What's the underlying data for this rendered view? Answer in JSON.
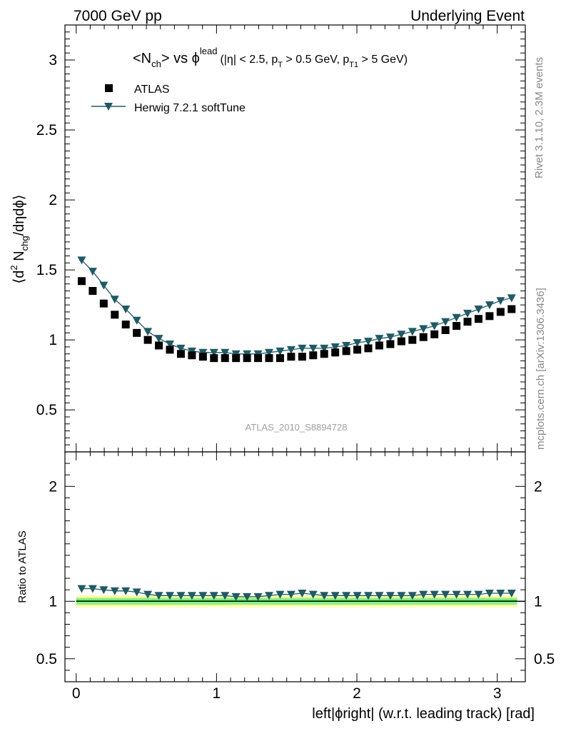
{
  "header": {
    "left": "7000 GeV pp",
    "right": "Underlying Event"
  },
  "side_labels": {
    "rivet": "Rivet 3.1.10,  2.3M events",
    "mcplots": "mcplots.cern.ch [arXiv:1306.3436]"
  },
  "watermark": "ATLAS_2010_S8894728",
  "colors": {
    "data": "#000000",
    "mc": "#1f5a66",
    "band_inner": "#90ee90",
    "band_outer": "#ffff99",
    "ratio_line": "#009e00"
  },
  "chart_data": {
    "type": "scatter",
    "title": {
      "main": "<N",
      "main_sub": "ch",
      "main_mid": "> vs ",
      "phi": "ϕ",
      "phi_sup": "lead",
      "detail_a": "(|η| < 2.5, p",
      "detail_sub1": "T",
      "detail_b": " > 0.5 GeV, p",
      "detail_sub2": "T1",
      "detail_c": " > 5 GeV)"
    },
    "ylabel": {
      "a": "⟨d",
      "sup": "2",
      "b": " N",
      "sub": "chg",
      "c": "/dηdϕ⟩"
    },
    "xlabel": "left|ϕright| (w.r.t. leading track) [rad]",
    "ratio_ylabel": "Ratio to ATLAS",
    "xlim": [
      -0.08,
      3.2
    ],
    "ylim": [
      0.2,
      3.25
    ],
    "ratio_ylim": [
      0.3,
      2.3
    ],
    "xticks": [
      0,
      1,
      2,
      3
    ],
    "yticks": [
      0.5,
      1,
      1.5,
      2,
      2.5,
      3
    ],
    "ratio_yticks": [
      0.5,
      1,
      2
    ],
    "ratio_yticks_right": [
      0.5,
      1,
      2
    ],
    "legend_position": "top-left",
    "series": [
      {
        "name": "ATLAS",
        "marker": "square",
        "x": [
          0.0393,
          0.1178,
          0.1963,
          0.2749,
          0.3534,
          0.432,
          0.5105,
          0.589,
          0.6676,
          0.7461,
          0.8247,
          0.9032,
          0.9817,
          1.0603,
          1.1388,
          1.2174,
          1.2959,
          1.3744,
          1.453,
          1.5315,
          1.6101,
          1.6886,
          1.7671,
          1.8457,
          1.9242,
          2.0028,
          2.0813,
          2.1598,
          2.2384,
          2.3169,
          2.3955,
          2.474,
          2.5525,
          2.6311,
          2.7096,
          2.7882,
          2.8667,
          2.9452,
          3.0238,
          3.1023
        ],
        "y": [
          1.42,
          1.35,
          1.26,
          1.18,
          1.11,
          1.05,
          1.0,
          0.96,
          0.93,
          0.9,
          0.89,
          0.88,
          0.87,
          0.87,
          0.87,
          0.87,
          0.87,
          0.87,
          0.87,
          0.88,
          0.88,
          0.89,
          0.9,
          0.91,
          0.92,
          0.93,
          0.94,
          0.96,
          0.97,
          0.99,
          1.0,
          1.02,
          1.04,
          1.07,
          1.1,
          1.13,
          1.15,
          1.17,
          1.2,
          1.22
        ]
      },
      {
        "name": "Herwig 7.2.1 softTune",
        "marker": "triangle-down",
        "x": [
          0.0393,
          0.1178,
          0.1963,
          0.2749,
          0.3534,
          0.432,
          0.5105,
          0.589,
          0.6676,
          0.7461,
          0.8247,
          0.9032,
          0.9817,
          1.0603,
          1.1388,
          1.2174,
          1.2959,
          1.3744,
          1.453,
          1.5315,
          1.6101,
          1.6886,
          1.7671,
          1.8457,
          1.9242,
          2.0028,
          2.0813,
          2.1598,
          2.2384,
          2.3169,
          2.3955,
          2.474,
          2.5525,
          2.6311,
          2.7096,
          2.7882,
          2.8667,
          2.9452,
          3.0238,
          3.1023
        ],
        "y": [
          1.57,
          1.49,
          1.39,
          1.29,
          1.22,
          1.14,
          1.06,
          1.01,
          0.97,
          0.94,
          0.92,
          0.91,
          0.91,
          0.91,
          0.9,
          0.9,
          0.9,
          0.91,
          0.92,
          0.93,
          0.94,
          0.94,
          0.94,
          0.95,
          0.96,
          0.98,
          0.99,
          1.01,
          1.02,
          1.04,
          1.06,
          1.08,
          1.1,
          1.13,
          1.16,
          1.19,
          1.22,
          1.25,
          1.28,
          1.3
        ]
      }
    ],
    "ratio": {
      "x": [
        0.0393,
        0.1178,
        0.1963,
        0.2749,
        0.3534,
        0.432,
        0.5105,
        0.589,
        0.6676,
        0.7461,
        0.8247,
        0.9032,
        0.9817,
        1.0603,
        1.1388,
        1.2174,
        1.2959,
        1.3744,
        1.453,
        1.5315,
        1.6101,
        1.6886,
        1.7671,
        1.8457,
        1.9242,
        2.0028,
        2.0813,
        2.1598,
        2.2384,
        2.3169,
        2.3955,
        2.474,
        2.5525,
        2.6311,
        2.7096,
        2.7882,
        2.8667,
        2.9452,
        3.0238,
        3.1023
      ],
      "y": [
        1.11,
        1.11,
        1.1,
        1.09,
        1.09,
        1.08,
        1.06,
        1.05,
        1.05,
        1.05,
        1.05,
        1.05,
        1.05,
        1.05,
        1.04,
        1.04,
        1.04,
        1.05,
        1.06,
        1.06,
        1.07,
        1.06,
        1.05,
        1.05,
        1.05,
        1.05,
        1.05,
        1.05,
        1.05,
        1.05,
        1.05,
        1.06,
        1.06,
        1.06,
        1.06,
        1.06,
        1.06,
        1.07,
        1.07,
        1.07
      ],
      "band_inner": [
        0.97,
        1.03
      ],
      "band_outer": [
        0.95,
        1.05
      ]
    }
  }
}
